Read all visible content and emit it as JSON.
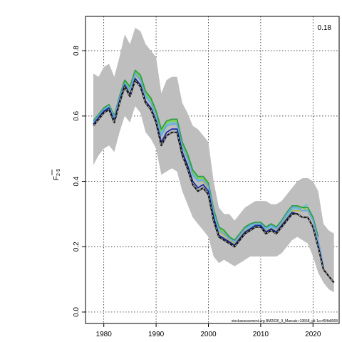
{
  "chart_data": {
    "type": "line",
    "ylabel_main": "F",
    "ylabel_sub": "2-5",
    "corner_annotation": "0.18",
    "footer_text": "stockassessment.org BM2026_9_Marcais r19558_git 1cc464b8068",
    "xlim": [
      1976.5,
      2025
    ],
    "ylim": [
      -0.035,
      0.905
    ],
    "x_ticks": [
      1980,
      1990,
      2000,
      2010,
      2020
    ],
    "y_ticks": [
      0.0,
      0.2,
      0.4,
      0.6,
      0.8
    ],
    "grid": true,
    "colors": {
      "band": "#bebebe",
      "main": "#111111",
      "main_dash": "#dddddd",
      "retro": [
        "#1a2fa0",
        "#6aa6e6",
        "#2c9e45",
        "#7dd13a",
        "#5fc7d0",
        "#b8b45a"
      ],
      "grid": "#000000",
      "axis": "#000000"
    },
    "band": {
      "x": [
        1978,
        1979,
        1980,
        1981,
        1982,
        1983,
        1984,
        1985,
        1986,
        1987,
        1988,
        1989,
        1990,
        1991,
        1992,
        1993,
        1994,
        1995,
        1996,
        1997,
        1998,
        1999,
        2000,
        2001,
        2002,
        2003,
        2004,
        2005,
        2006,
        2007,
        2008,
        2009,
        2010,
        2011,
        2012,
        2013,
        2014,
        2015,
        2016,
        2017,
        2018,
        2019,
        2020,
        2021,
        2022,
        2023,
        2024
      ],
      "upper": [
        0.73,
        0.72,
        0.75,
        0.76,
        0.72,
        0.78,
        0.85,
        0.82,
        0.87,
        0.86,
        0.82,
        0.8,
        0.78,
        0.67,
        0.71,
        0.72,
        0.72,
        0.64,
        0.61,
        0.57,
        0.56,
        0.54,
        0.52,
        0.4,
        0.32,
        0.3,
        0.3,
        0.28,
        0.3,
        0.32,
        0.33,
        0.34,
        0.34,
        0.34,
        0.33,
        0.33,
        0.34,
        0.36,
        0.38,
        0.4,
        0.41,
        0.41,
        0.4,
        0.37,
        0.27,
        0.25,
        0.24
      ],
      "lower": [
        0.45,
        0.48,
        0.5,
        0.51,
        0.49,
        0.55,
        0.6,
        0.58,
        0.63,
        0.61,
        0.55,
        0.53,
        0.5,
        0.42,
        0.43,
        0.44,
        0.43,
        0.37,
        0.33,
        0.29,
        0.27,
        0.25,
        0.23,
        0.17,
        0.15,
        0.16,
        0.15,
        0.14,
        0.15,
        0.16,
        0.17,
        0.17,
        0.17,
        0.17,
        0.17,
        0.17,
        0.18,
        0.2,
        0.22,
        0.23,
        0.22,
        0.21,
        0.17,
        0.12,
        0.09,
        0.07,
        0.06
      ]
    },
    "series": [
      {
        "x": [
          1978,
          1979,
          1980,
          1981,
          1982,
          1983,
          1984,
          1985,
          1986,
          1987,
          1988,
          1989,
          1990,
          1991,
          1992,
          1993,
          1994,
          1995,
          1996,
          1997,
          1998,
          1999,
          2000,
          2001,
          2002,
          2003,
          2004,
          2005,
          2006,
          2007,
          2008,
          2009,
          2010,
          2011,
          2012,
          2013,
          2014,
          2015,
          2016,
          2017,
          2018,
          2019,
          2020,
          2021,
          2022,
          2023,
          2024
        ],
        "values": [
          0.57,
          0.59,
          0.61,
          0.62,
          0.58,
          0.64,
          0.69,
          0.66,
          0.71,
          0.69,
          0.64,
          0.62,
          0.58,
          0.51,
          0.54,
          0.55,
          0.55,
          0.48,
          0.44,
          0.39,
          0.37,
          0.38,
          0.36,
          0.28,
          0.23,
          0.22,
          0.21,
          0.2,
          0.22,
          0.24,
          0.25,
          0.26,
          0.26,
          0.24,
          0.25,
          0.24,
          0.26,
          0.28,
          0.3,
          0.3,
          0.29,
          0.29,
          0.26,
          0.2,
          0.13,
          0.11,
          0.09
        ]
      },
      {
        "x": [
          1978,
          1979,
          1980,
          1981,
          1982,
          1983,
          1984,
          1985,
          1986,
          1987,
          1988,
          1989,
          1990,
          1991,
          1992,
          1993,
          1994,
          1995,
          1996,
          1997,
          1998,
          1999,
          2000,
          2001,
          2002,
          2003,
          2004,
          2005,
          2006,
          2007,
          2008,
          2009,
          2010,
          2011,
          2012,
          2013,
          2014,
          2015,
          2016,
          2017,
          2018,
          2019,
          2020,
          2021,
          2022,
          2023
        ],
        "values": [
          0.575,
          0.595,
          0.615,
          0.625,
          0.585,
          0.645,
          0.695,
          0.665,
          0.715,
          0.695,
          0.645,
          0.625,
          0.585,
          0.52,
          0.55,
          0.56,
          0.56,
          0.49,
          0.45,
          0.4,
          0.38,
          0.39,
          0.37,
          0.29,
          0.235,
          0.225,
          0.215,
          0.205,
          0.225,
          0.245,
          0.255,
          0.265,
          0.265,
          0.245,
          0.255,
          0.245,
          0.265,
          0.285,
          0.305,
          0.3,
          0.29,
          0.29,
          0.26,
          0.2,
          0.13,
          0.11
        ]
      },
      {
        "x": [
          1978,
          1979,
          1980,
          1981,
          1982,
          1983,
          1984,
          1985,
          1986,
          1987,
          1988,
          1989,
          1990,
          1991,
          1992,
          1993,
          1994,
          1995,
          1996,
          1997,
          1998,
          1999,
          2000,
          2001,
          2002,
          2003,
          2004,
          2005,
          2006,
          2007,
          2008,
          2009,
          2010,
          2011,
          2012,
          2013,
          2014,
          2015,
          2016,
          2017,
          2018,
          2019,
          2020,
          2021,
          2022
        ],
        "values": [
          0.58,
          0.6,
          0.62,
          0.63,
          0.595,
          0.655,
          0.7,
          0.68,
          0.73,
          0.71,
          0.66,
          0.64,
          0.6,
          0.54,
          0.57,
          0.575,
          0.575,
          0.505,
          0.47,
          0.42,
          0.4,
          0.405,
          0.385,
          0.305,
          0.25,
          0.24,
          0.225,
          0.215,
          0.235,
          0.255,
          0.265,
          0.27,
          0.27,
          0.255,
          0.265,
          0.255,
          0.275,
          0.3,
          0.32,
          0.32,
          0.31,
          0.31,
          0.28,
          0.22,
          0.14
        ]
      },
      {
        "x": [
          1978,
          1979,
          1980,
          1981,
          1982,
          1983,
          1984,
          1985,
          1986,
          1987,
          1988,
          1989,
          1990,
          1991,
          1992,
          1993,
          1994,
          1995,
          1996,
          1997,
          1998,
          1999,
          2000,
          2001,
          2002,
          2003,
          2004,
          2005,
          2006,
          2007,
          2008,
          2009,
          2010,
          2011,
          2012,
          2013,
          2014,
          2015,
          2016,
          2017,
          2018,
          2019,
          2020,
          2021
        ],
        "values": [
          0.585,
          0.605,
          0.625,
          0.635,
          0.6,
          0.66,
          0.71,
          0.69,
          0.74,
          0.725,
          0.675,
          0.655,
          0.615,
          0.56,
          0.585,
          0.59,
          0.59,
          0.52,
          0.485,
          0.435,
          0.415,
          0.415,
          0.395,
          0.315,
          0.26,
          0.25,
          0.23,
          0.22,
          0.24,
          0.26,
          0.27,
          0.275,
          0.275,
          0.26,
          0.27,
          0.26,
          0.28,
          0.305,
          0.325,
          0.325,
          0.32,
          0.32,
          0.29,
          0.23
        ]
      },
      {
        "x": [
          1978,
          1979,
          1980,
          1981,
          1982,
          1983,
          1984,
          1985,
          1986,
          1987,
          1988,
          1989,
          1990,
          1991,
          1992,
          1993,
          1994,
          1995,
          1996,
          1997,
          1998,
          1999,
          2000,
          2001,
          2002,
          2003,
          2004,
          2005,
          2006,
          2007,
          2008,
          2009,
          2010,
          2011,
          2012,
          2013,
          2014,
          2015,
          2016,
          2017,
          2018,
          2019,
          2020
        ],
        "values": [
          0.58,
          0.6,
          0.62,
          0.63,
          0.6,
          0.655,
          0.705,
          0.685,
          0.735,
          0.72,
          0.67,
          0.65,
          0.61,
          0.555,
          0.58,
          0.585,
          0.585,
          0.515,
          0.48,
          0.43,
          0.41,
          0.41,
          0.39,
          0.31,
          0.255,
          0.245,
          0.23,
          0.22,
          0.24,
          0.26,
          0.265,
          0.27,
          0.27,
          0.26,
          0.265,
          0.26,
          0.28,
          0.3,
          0.32,
          0.32,
          0.32,
          0.31,
          0.29
        ]
      },
      {
        "x": [
          1978,
          1979,
          1980,
          1981,
          1982,
          1983,
          1984,
          1985,
          1986,
          1987,
          1988,
          1989,
          1990,
          1991,
          1992,
          1993,
          1994,
          1995,
          1996,
          1997,
          1998,
          1999,
          2000,
          2001,
          2002,
          2003,
          2004,
          2005,
          2006,
          2007,
          2008,
          2009,
          2010,
          2011,
          2012,
          2013,
          2014,
          2015,
          2016,
          2017,
          2018,
          2019
        ],
        "values": [
          0.575,
          0.595,
          0.615,
          0.625,
          0.595,
          0.65,
          0.7,
          0.68,
          0.73,
          0.715,
          0.665,
          0.645,
          0.605,
          0.55,
          0.575,
          0.58,
          0.58,
          0.51,
          0.475,
          0.425,
          0.405,
          0.405,
          0.385,
          0.305,
          0.25,
          0.24,
          0.225,
          0.215,
          0.235,
          0.255,
          0.26,
          0.265,
          0.265,
          0.255,
          0.26,
          0.255,
          0.275,
          0.295,
          0.315,
          0.315,
          0.32,
          0.33
        ]
      },
      {
        "x": [
          1978,
          1979,
          1980,
          1981,
          1982,
          1983,
          1984,
          1985,
          1986,
          1987,
          1988,
          1989,
          1990,
          1991,
          1992,
          1993,
          1994,
          1995,
          1996,
          1997,
          1998,
          1999,
          2000,
          2001,
          2002,
          2003,
          2004,
          2005,
          2006,
          2007,
          2008,
          2009,
          2010,
          2011,
          2012,
          2013,
          2014,
          2015,
          2016,
          2017,
          2018
        ],
        "values": [
          0.57,
          0.59,
          0.61,
          0.62,
          0.59,
          0.645,
          0.695,
          0.675,
          0.725,
          0.71,
          0.66,
          0.64,
          0.6,
          0.545,
          0.57,
          0.575,
          0.575,
          0.505,
          0.47,
          0.42,
          0.4,
          0.4,
          0.38,
          0.3,
          0.245,
          0.235,
          0.22,
          0.21,
          0.23,
          0.25,
          0.255,
          0.26,
          0.26,
          0.25,
          0.255,
          0.25,
          0.27,
          0.29,
          0.31,
          0.31,
          0.31
        ]
      }
    ]
  }
}
